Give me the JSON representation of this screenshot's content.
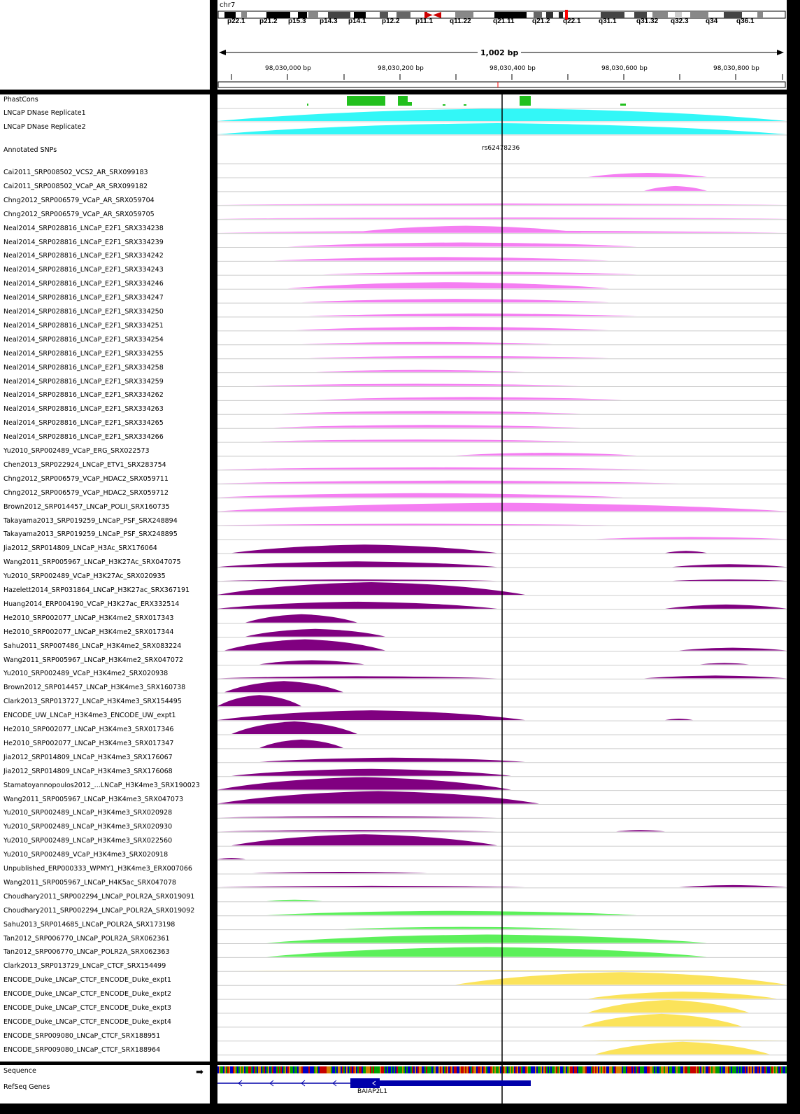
{
  "chromosome": {
    "name": "chr7",
    "bands": [
      "p22.1",
      "p21.2",
      "p15.3",
      "p14.3",
      "p14.1",
      "p12.2",
      "p11.1",
      "q11.22",
      "q21.11",
      "q21.2",
      "q22.1",
      "q31.1",
      "q31.32",
      "q32.3",
      "q34",
      "q36.1"
    ]
  },
  "ruler": {
    "span": "1,002 bp",
    "ticks": [
      "98,030,000 bp",
      "98,030,200 bp",
      "98,030,400 bp",
      "98,030,600 bp",
      "98,030,800 bp"
    ]
  },
  "colors": {
    "phastcons": "#22c01e",
    "dnase": "#33f7f7",
    "tf": "#f57ef2",
    "histone": "#800080",
    "polr2a": "#5cf05a",
    "ctcf": "#fbe35a",
    "gene": "#0000aa"
  },
  "tracks": {
    "phastcons": "PhastCons",
    "dnase": [
      "LNCaP DNase Replicate1",
      "LNCaP DNase Replicate2"
    ],
    "snps": "Annotated SNPs",
    "snp_id": "rs62478236",
    "chip": [
      {
        "name": "Cai2011_SRP008502_VCS2_AR_SRX099183",
        "group": "tf"
      },
      {
        "name": "Cai2011_SRP008502_VCaP_AR_SRX099182",
        "group": "tf"
      },
      {
        "name": "Chng2012_SRP006579_VCaP_AR_SRX059704",
        "group": "tf"
      },
      {
        "name": "Chng2012_SRP006579_VCaP_AR_SRX059705",
        "group": "tf"
      },
      {
        "name": "Neal2014_SRP028816_LNCaP_E2F1_SRX334238",
        "group": "tf"
      },
      {
        "name": "Neal2014_SRP028816_LNCaP_E2F1_SRX334239",
        "group": "tf"
      },
      {
        "name": "Neal2014_SRP028816_LNCaP_E2F1_SRX334242",
        "group": "tf"
      },
      {
        "name": "Neal2014_SRP028816_LNCaP_E2F1_SRX334243",
        "group": "tf"
      },
      {
        "name": "Neal2014_SRP028816_LNCaP_E2F1_SRX334246",
        "group": "tf"
      },
      {
        "name": "Neal2014_SRP028816_LNCaP_E2F1_SRX334247",
        "group": "tf"
      },
      {
        "name": "Neal2014_SRP028816_LNCaP_E2F1_SRX334250",
        "group": "tf"
      },
      {
        "name": "Neal2014_SRP028816_LNCaP_E2F1_SRX334251",
        "group": "tf"
      },
      {
        "name": "Neal2014_SRP028816_LNCaP_E2F1_SRX334254",
        "group": "tf"
      },
      {
        "name": "Neal2014_SRP028816_LNCaP_E2F1_SRX334255",
        "group": "tf"
      },
      {
        "name": "Neal2014_SRP028816_LNCaP_E2F1_SRX334258",
        "group": "tf"
      },
      {
        "name": "Neal2014_SRP028816_LNCaP_E2F1_SRX334259",
        "group": "tf"
      },
      {
        "name": "Neal2014_SRP028816_LNCaP_E2F1_SRX334262",
        "group": "tf"
      },
      {
        "name": "Neal2014_SRP028816_LNCaP_E2F1_SRX334263",
        "group": "tf"
      },
      {
        "name": "Neal2014_SRP028816_LNCaP_E2F1_SRX334265",
        "group": "tf"
      },
      {
        "name": "Neal2014_SRP028816_LNCaP_E2F1_SRX334266",
        "group": "tf"
      },
      {
        "name": "Yu2010_SRP002489_VCaP_ERG_SRX022573",
        "group": "tf"
      },
      {
        "name": "Chen2013_SRP022924_LNCaP_ETV1_SRX283754",
        "group": "tf"
      },
      {
        "name": "Chng2012_SRP006579_VCaP_HDAC2_SRX059711",
        "group": "tf"
      },
      {
        "name": "Chng2012_SRP006579_VCaP_HDAC2_SRX059712",
        "group": "tf"
      },
      {
        "name": "Brown2012_SRP014457_LNCaP_POLII_SRX160735",
        "group": "tf"
      },
      {
        "name": "Takayama2013_SRP019259_LNCaP_PSF_SRX248894",
        "group": "tf"
      },
      {
        "name": "Takayama2013_SRP019259_LNCaP_PSF_SRX248895",
        "group": "tf"
      },
      {
        "name": "Jia2012_SRP014809_LNCaP_H3Ac_SRX176064",
        "group": "histone"
      },
      {
        "name": "Wang2011_SRP005967_LNCaP_H3K27Ac_SRX047075",
        "group": "histone"
      },
      {
        "name": "Yu2010_SRP002489_VCaP_H3K27Ac_SRX020935",
        "group": "histone"
      },
      {
        "name": "Hazelett2014_SRP031864_LNCaP_H3K27ac_SRX367191",
        "group": "histone"
      },
      {
        "name": "Huang2014_ERP004190_VCaP_H3K27ac_ERX332514",
        "group": "histone"
      },
      {
        "name": "He2010_SRP002077_LNCaP_H3K4me2_SRX017343",
        "group": "histone"
      },
      {
        "name": "He2010_SRP002077_LNCaP_H3K4me2_SRX017344",
        "group": "histone"
      },
      {
        "name": "Sahu2011_SRP007486_LNCaP_H3K4me2_SRX083224",
        "group": "histone"
      },
      {
        "name": "Wang2011_SRP005967_LNCaP_H3K4me2_SRX047072",
        "group": "histone"
      },
      {
        "name": "Yu2010_SRP002489_VCaP_H3K4me2_SRX020938",
        "group": "histone"
      },
      {
        "name": "Brown2012_SRP014457_LNCaP_H3K4me3_SRX160738",
        "group": "histone"
      },
      {
        "name": "Clark2013_SRP013727_LNCaP_H3K4me3_SRX154495",
        "group": "histone"
      },
      {
        "name": "ENCODE_UW_LNCaP_H3K4me3_ENCODE_UW_expt1",
        "group": "histone"
      },
      {
        "name": "He2010_SRP002077_LNCaP_H3K4me3_SRX017346",
        "group": "histone"
      },
      {
        "name": "He2010_SRP002077_LNCaP_H3K4me3_SRX017347",
        "group": "histone"
      },
      {
        "name": "Jia2012_SRP014809_LNCaP_H3K4me3_SRX176067",
        "group": "histone"
      },
      {
        "name": "Jia2012_SRP014809_LNCaP_H3K4me3_SRX176068",
        "group": "histone"
      },
      {
        "name": "Stamatoyannopoulos2012_...LNCaP_H3K4me3_SRX190023",
        "group": "histone"
      },
      {
        "name": "Wang2011_SRP005967_LNCaP_H3K4me3_SRX047073",
        "group": "histone"
      },
      {
        "name": "Yu2010_SRP002489_LNCaP_H3K4me3_SRX020928",
        "group": "histone"
      },
      {
        "name": "Yu2010_SRP002489_LNCaP_H3K4me3_SRX020930",
        "group": "histone"
      },
      {
        "name": "Yu2010_SRP002489_LNCaP_H3K4me3_SRX022560",
        "group": "histone"
      },
      {
        "name": "Yu2010_SRP002489_VCaP_H3K4me3_SRX020918",
        "group": "histone"
      },
      {
        "name": "Unpublished_ERP000333_WPMY1_H3K4me3_ERX007066",
        "group": "histone"
      },
      {
        "name": "Wang2011_SRP005967_LNCaP_H4K5ac_SRX047078",
        "group": "histone"
      },
      {
        "name": "Choudhary2011_SRP002294_LNCaP_POLR2A_SRX019091",
        "group": "polr2a"
      },
      {
        "name": "Choudhary2011_SRP002294_LNCaP_POLR2A_SRX019092",
        "group": "polr2a"
      },
      {
        "name": "Sahu2013_SRP014685_LNCaP_POLR2A_SRX173198",
        "group": "polr2a"
      },
      {
        "name": "Tan2012_SRP006770_LNCaP_POLR2A_SRX062361",
        "group": "polr2a"
      },
      {
        "name": "Tan2012_SRP006770_LNCaP_POLR2A_SRX062363",
        "group": "polr2a"
      },
      {
        "name": "Clark2013_SRP013729_LNCaP_CTCF_SRX154499",
        "group": "ctcf"
      },
      {
        "name": "ENCODE_Duke_LNCaP_CTCF_ENCODE_Duke_expt1",
        "group": "ctcf"
      },
      {
        "name": "ENCODE_Duke_LNCaP_CTCF_ENCODE_Duke_expt2",
        "group": "ctcf"
      },
      {
        "name": "ENCODE_Duke_LNCaP_CTCF_ENCODE_Duke_expt3",
        "group": "ctcf"
      },
      {
        "name": "ENCODE_Duke_LNCaP_CTCF_ENCODE_Duke_expt4",
        "group": "ctcf"
      },
      {
        "name": "ENCODE_SRP009080_LNCaP_CTCF_SRX188951",
        "group": "ctcf"
      },
      {
        "name": "ENCODE_SRP009080_LNCaP_CTCF_SRX188964",
        "group": "ctcf"
      }
    ],
    "sequence": "Sequence",
    "refseq": "RefSeq Genes",
    "gene_name": "BAIAP2L1"
  }
}
